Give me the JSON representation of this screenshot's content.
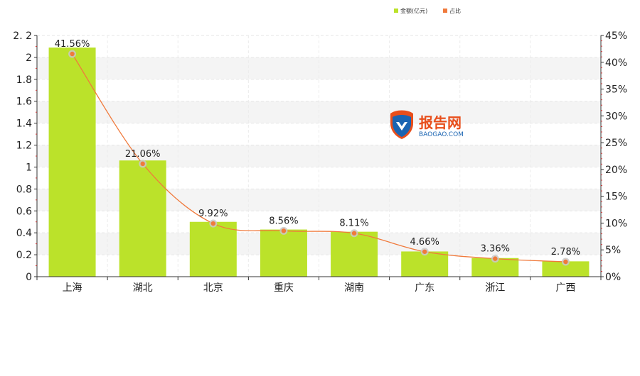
{
  "chart_data": {
    "type": "bar",
    "categories": [
      "上海",
      "湖北",
      "北京",
      "重庆",
      "湖南",
      "广东",
      "浙江",
      "广西"
    ],
    "series": [
      {
        "name": "金额(亿元)",
        "type": "bar",
        "axis": "left",
        "color": "#bbe22a",
        "values": [
          2.09,
          1.06,
          0.5,
          0.43,
          0.41,
          0.23,
          0.17,
          0.14
        ]
      },
      {
        "name": "占比",
        "type": "line",
        "axis": "right",
        "color": "#f07a3c",
        "values": [
          41.56,
          21.06,
          9.92,
          8.56,
          8.11,
          4.66,
          3.36,
          2.78
        ],
        "labels": [
          "41.56%",
          "21.06%",
          "9.92%",
          "8.56%",
          "8.11%",
          "4.66%",
          "3.36%",
          "2.78%"
        ]
      }
    ],
    "ylim_left": [
      0,
      2.2
    ],
    "yticks_left": [
      "0",
      "0.2",
      "0.4",
      "0.6",
      "0.8",
      "1",
      "1.2",
      "1.4",
      "1.6",
      "1.8",
      "2",
      "2. 2"
    ],
    "ylim_right": [
      0,
      45
    ],
    "yticks_right": [
      "0%",
      "5%",
      "10%",
      "15%",
      "20%",
      "25%",
      "30%",
      "35%",
      "40%",
      "45%"
    ],
    "legend_position": "top-right",
    "grid": true
  },
  "watermark": {
    "brand": "报告网",
    "domain": "BAOGAO.COM"
  }
}
